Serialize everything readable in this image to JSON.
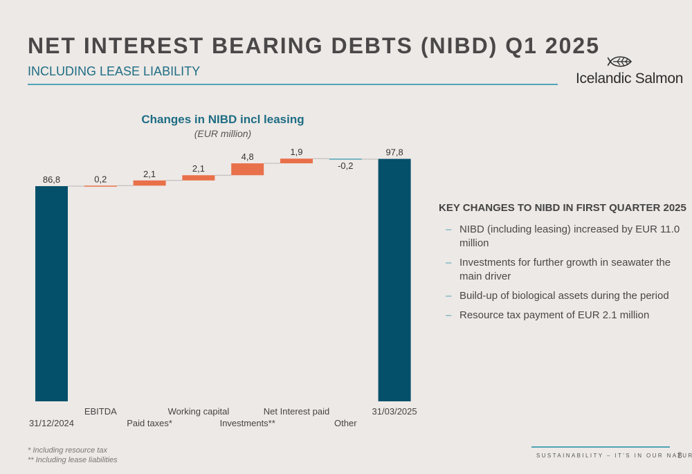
{
  "header": {
    "title": "NET INTEREST BEARING DEBTS (NIBD) Q1 2025",
    "subtitle": "INCLUDING LEASE LIABILITY"
  },
  "logo": {
    "brand": "Icelandic Salmon",
    "icon": "fish-leaf-icon"
  },
  "chart_data": {
    "type": "bar",
    "subtype": "waterfall",
    "title": "Changes in NIBD incl leasing",
    "subtitle": "(EUR million)",
    "categories": [
      "31/12/2024",
      "EBITDA",
      "Paid taxes*",
      "Working capital",
      "Investments**",
      "Net Interest paid",
      "Other",
      "31/03/2025"
    ],
    "values": [
      86.8,
      0.2,
      2.1,
      2.1,
      4.8,
      1.9,
      -0.2,
      97.8
    ],
    "labels": [
      "86,8",
      "0,2",
      "2,1",
      "2,1",
      "4,8",
      "1,9",
      "-0,2",
      "97,8"
    ],
    "kinds": [
      "total",
      "delta",
      "delta",
      "delta",
      "delta",
      "delta",
      "delta",
      "total"
    ],
    "colors": {
      "total": "#04506b",
      "increase": "#e8704a",
      "decrease": "#4fa4b6",
      "connector": "#b8b8b8"
    },
    "ylim": [
      0,
      100
    ],
    "grid": false,
    "legend": "none"
  },
  "key_changes": {
    "title": "KEY CHANGES TO NIBD IN FIRST QUARTER 2025",
    "dash": "–",
    "items": [
      {
        "text": "NIBD (including leasing) increased by EUR 11.0 million"
      },
      {
        "text": "Investments for further growth in seawater the main driver"
      },
      {
        "text": "Build-up of biological assets during the period"
      },
      {
        "text": "Resource tax payment of EUR 2.1 million"
      }
    ]
  },
  "footnotes": [
    "* Including resource tax",
    "** Including lease liabilities"
  ],
  "footer": {
    "tagline": "SUSTAINABILITY – IT'S IN OUR NATURE",
    "page": "8"
  }
}
